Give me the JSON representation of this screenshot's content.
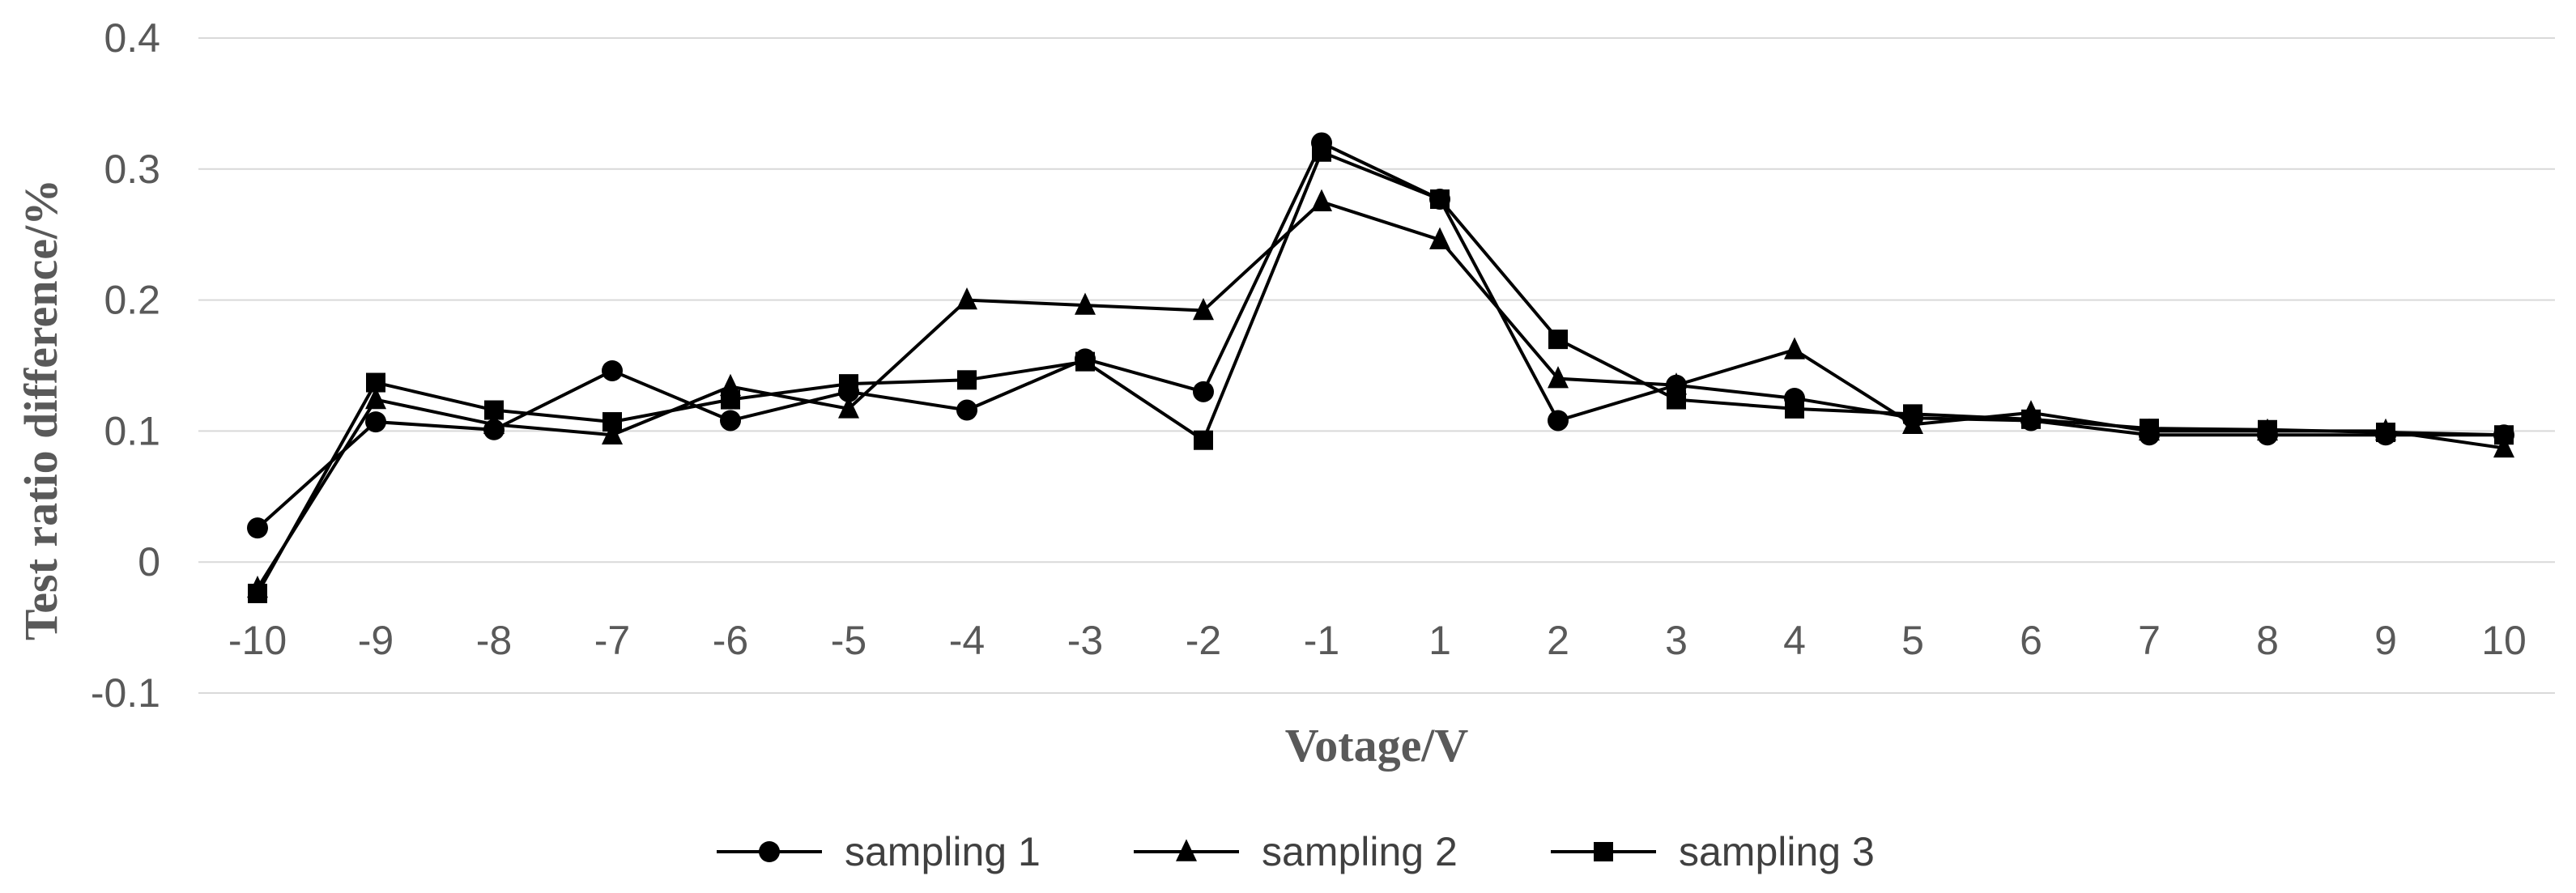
{
  "chart_data": {
    "type": "line",
    "title": "",
    "xlabel": "Votage/V",
    "ylabel": "Test ratio difference/%",
    "categories": [
      "-10",
      "-9",
      "-8",
      "-7",
      "-6",
      "-5",
      "-4",
      "-3",
      "-2",
      "-1",
      "1",
      "2",
      "3",
      "4",
      "5",
      "6",
      "7",
      "8",
      "9",
      "10"
    ],
    "ylim": [
      -0.1,
      0.4
    ],
    "yticks": [
      -0.1,
      0,
      0.1,
      0.2,
      0.3,
      0.4
    ],
    "ytick_labels": [
      "-0.1",
      "0",
      "0.1",
      "0.2",
      "0.3",
      "0.4"
    ],
    "grid": true,
    "legend_position": "bottom",
    "series": [
      {
        "name": "sampling 1",
        "marker": "circle",
        "color": "#000000",
        "values": [
          0.026,
          0.107,
          0.101,
          0.146,
          0.108,
          0.13,
          0.116,
          0.155,
          0.13,
          0.32,
          0.277,
          0.108,
          0.135,
          0.125,
          0.11,
          0.108,
          0.097,
          0.097,
          0.097,
          0.097
        ]
      },
      {
        "name": "sampling 2",
        "marker": "triangle",
        "color": "#000000",
        "values": [
          -0.02,
          0.124,
          0.105,
          0.097,
          0.134,
          0.117,
          0.2,
          0.196,
          0.192,
          0.275,
          0.246,
          0.14,
          0.135,
          0.162,
          0.105,
          0.114,
          0.1,
          0.1,
          0.1,
          0.087
        ]
      },
      {
        "name": "sampling 3",
        "marker": "square",
        "color": "#000000",
        "values": [
          -0.024,
          0.137,
          0.116,
          0.107,
          0.124,
          0.136,
          0.139,
          0.153,
          0.093,
          0.313,
          0.277,
          0.17,
          0.124,
          0.117,
          0.113,
          0.109,
          0.102,
          0.101,
          0.099,
          0.097
        ]
      }
    ]
  }
}
